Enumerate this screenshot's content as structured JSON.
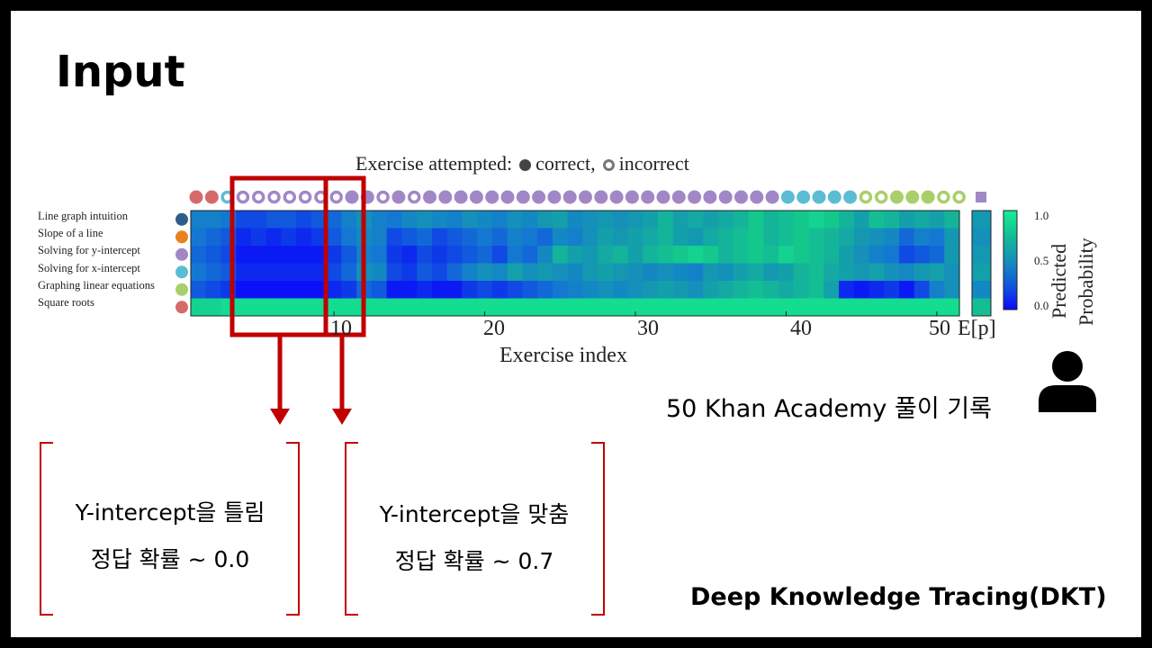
{
  "title": "Input",
  "figure": {
    "attempt_label": "Exercise attempted:",
    "correct_label": "correct,",
    "incorrect_label": "incorrect",
    "skills": [
      {
        "name": "Line graph intuition",
        "color": "#2f5d8a"
      },
      {
        "name": "Slope of a line",
        "color": "#e8821e"
      },
      {
        "name": "Solving for y-intercept",
        "color": "#a287c6"
      },
      {
        "name": "Solving for x-intercept",
        "color": "#5bbdd4"
      },
      {
        "name": "Graphing linear equations",
        "color": "#a9cf6a"
      },
      {
        "name": "Square roots",
        "color": "#d66a6a"
      }
    ],
    "x_ticks": [
      "10",
      "20",
      "30",
      "40",
      "50"
    ],
    "x_label": "Exercise index",
    "ep_label": "E[p]",
    "colorbar_ticks": [
      "1.0",
      "0.5",
      "0.0"
    ],
    "colorbar_title": [
      "Predicted",
      "Probability"
    ]
  },
  "chart_data": {
    "type": "heatmap",
    "title": "Exercise attempted: correct, incorrect",
    "xlabel": "Exercise index",
    "ylabel": "",
    "x_ticks": [
      10,
      20,
      30,
      40,
      50
    ],
    "value_range": [
      0.0,
      1.0
    ],
    "colorbar_label": "Predicted Probability",
    "colorbar_ticks": [
      0.0,
      0.5,
      1.0
    ],
    "rows": [
      "Line graph intuition",
      "Slope of a line",
      "Solving for y-intercept",
      "Solving for x-intercept",
      "Graphing linear equations",
      "Square roots"
    ],
    "attempts": [
      {
        "skill": 5,
        "correct": true
      },
      {
        "skill": 5,
        "correct": true
      },
      {
        "skill": 3,
        "correct": false
      },
      {
        "skill": 2,
        "correct": false
      },
      {
        "skill": 2,
        "correct": false
      },
      {
        "skill": 2,
        "correct": false
      },
      {
        "skill": 2,
        "correct": false
      },
      {
        "skill": 2,
        "correct": false
      },
      {
        "skill": 2,
        "correct": false
      },
      {
        "skill": 2,
        "correct": false
      },
      {
        "skill": 2,
        "correct": true
      },
      {
        "skill": 2,
        "correct": true
      },
      {
        "skill": 2,
        "correct": false
      },
      {
        "skill": 2,
        "correct": true
      },
      {
        "skill": 2,
        "correct": false
      },
      {
        "skill": 2,
        "correct": true
      },
      {
        "skill": 2,
        "correct": true
      },
      {
        "skill": 2,
        "correct": true
      },
      {
        "skill": 2,
        "correct": true
      },
      {
        "skill": 2,
        "correct": true
      },
      {
        "skill": 2,
        "correct": true
      },
      {
        "skill": 2,
        "correct": true
      },
      {
        "skill": 2,
        "correct": true
      },
      {
        "skill": 2,
        "correct": true
      },
      {
        "skill": 2,
        "correct": true
      },
      {
        "skill": 2,
        "correct": true
      },
      {
        "skill": 2,
        "correct": true
      },
      {
        "skill": 2,
        "correct": true
      },
      {
        "skill": 2,
        "correct": true
      },
      {
        "skill": 2,
        "correct": true
      },
      {
        "skill": 2,
        "correct": true
      },
      {
        "skill": 2,
        "correct": true
      },
      {
        "skill": 2,
        "correct": true
      },
      {
        "skill": 2,
        "correct": true
      },
      {
        "skill": 2,
        "correct": true
      },
      {
        "skill": 2,
        "correct": true
      },
      {
        "skill": 2,
        "correct": true
      },
      {
        "skill": 2,
        "correct": true
      },
      {
        "skill": 3,
        "correct": true
      },
      {
        "skill": 3,
        "correct": true
      },
      {
        "skill": 3,
        "correct": true
      },
      {
        "skill": 3,
        "correct": true
      },
      {
        "skill": 3,
        "correct": true
      },
      {
        "skill": 4,
        "correct": false
      },
      {
        "skill": 4,
        "correct": false
      },
      {
        "skill": 4,
        "correct": true
      },
      {
        "skill": 4,
        "correct": true
      },
      {
        "skill": 4,
        "correct": true
      },
      {
        "skill": 4,
        "correct": false
      },
      {
        "skill": 4,
        "correct": false
      }
    ],
    "values": [
      [
        0.4,
        0.4,
        0.35,
        0.2,
        0.2,
        0.25,
        0.25,
        0.2,
        0.25,
        0.3,
        0.4,
        0.5,
        0.4,
        0.35,
        0.45,
        0.5,
        0.45,
        0.4,
        0.5,
        0.45,
        0.4,
        0.5,
        0.45,
        0.55,
        0.6,
        0.45,
        0.5,
        0.55,
        0.5,
        0.55,
        0.6,
        0.7,
        0.6,
        0.65,
        0.6,
        0.65,
        0.7,
        0.8,
        0.7,
        0.75,
        0.8,
        0.85,
        0.8,
        0.7,
        0.6,
        0.75,
        0.7,
        0.6,
        0.65,
        0.6,
        0.7
      ],
      [
        0.35,
        0.3,
        0.25,
        0.1,
        0.15,
        0.1,
        0.15,
        0.1,
        0.15,
        0.25,
        0.35,
        0.45,
        0.4,
        0.2,
        0.25,
        0.3,
        0.2,
        0.25,
        0.3,
        0.35,
        0.3,
        0.4,
        0.35,
        0.3,
        0.45,
        0.4,
        0.5,
        0.6,
        0.55,
        0.6,
        0.65,
        0.7,
        0.6,
        0.55,
        0.65,
        0.7,
        0.75,
        0.8,
        0.7,
        0.75,
        0.8,
        0.75,
        0.7,
        0.65,
        0.55,
        0.5,
        0.45,
        0.3,
        0.4,
        0.35,
        0.55
      ],
      [
        0.3,
        0.25,
        0.2,
        0.05,
        0.05,
        0.05,
        0.05,
        0.05,
        0.05,
        0.15,
        0.25,
        0.4,
        0.35,
        0.15,
        0.1,
        0.2,
        0.15,
        0.2,
        0.25,
        0.3,
        0.2,
        0.35,
        0.3,
        0.45,
        0.7,
        0.6,
        0.55,
        0.65,
        0.7,
        0.6,
        0.7,
        0.75,
        0.8,
        0.85,
        0.8,
        0.7,
        0.75,
        0.8,
        0.75,
        0.85,
        0.8,
        0.75,
        0.7,
        0.6,
        0.5,
        0.4,
        0.35,
        0.2,
        0.25,
        0.3,
        0.55
      ],
      [
        0.35,
        0.3,
        0.25,
        0.1,
        0.1,
        0.1,
        0.1,
        0.1,
        0.1,
        0.2,
        0.3,
        0.5,
        0.45,
        0.2,
        0.15,
        0.25,
        0.2,
        0.3,
        0.4,
        0.5,
        0.45,
        0.6,
        0.5,
        0.55,
        0.5,
        0.45,
        0.55,
        0.6,
        0.55,
        0.5,
        0.45,
        0.5,
        0.45,
        0.4,
        0.55,
        0.5,
        0.6,
        0.65,
        0.55,
        0.6,
        0.7,
        0.75,
        0.65,
        0.6,
        0.55,
        0.6,
        0.5,
        0.45,
        0.55,
        0.6,
        0.5
      ],
      [
        0.25,
        0.2,
        0.15,
        0.02,
        0.02,
        0.02,
        0.02,
        0.02,
        0.02,
        0.1,
        0.15,
        0.3,
        0.25,
        0.05,
        0.05,
        0.1,
        0.05,
        0.05,
        0.15,
        0.2,
        0.15,
        0.2,
        0.25,
        0.3,
        0.35,
        0.4,
        0.45,
        0.5,
        0.45,
        0.5,
        0.55,
        0.6,
        0.55,
        0.5,
        0.6,
        0.65,
        0.7,
        0.75,
        0.7,
        0.65,
        0.7,
        0.75,
        0.6,
        0.1,
        0.05,
        0.1,
        0.15,
        0.05,
        0.2,
        0.4,
        0.5
      ],
      [
        0.85,
        0.85,
        0.9,
        0.9,
        0.9,
        0.9,
        0.9,
        0.9,
        0.9,
        0.9,
        0.9,
        0.9,
        0.9,
        0.9,
        0.9,
        0.9,
        0.9,
        0.9,
        0.9,
        0.9,
        0.9,
        0.9,
        0.9,
        0.9,
        0.9,
        0.9,
        0.9,
        0.9,
        0.9,
        0.9,
        0.9,
        0.9,
        0.9,
        0.9,
        0.9,
        0.9,
        0.9,
        0.9,
        0.9,
        0.9,
        0.9,
        0.9,
        0.9,
        0.9,
        0.9,
        0.9,
        0.9,
        0.9,
        0.9,
        0.9,
        0.9
      ]
    ],
    "expected": [
      0.55,
      0.5,
      0.55,
      0.6,
      0.45,
      0.75
    ],
    "extra_attempt": {
      "symbol": "square",
      "color": "#a287c6"
    }
  },
  "annotations": {
    "accent_color": "#c00000",
    "box_left": {
      "line1": "Y-intercept을 틀림",
      "line2": "정답 확률 ~ 0.0"
    },
    "box_right": {
      "line1": "Y-intercept을 맞춤",
      "line2": "정답 확률 ~ 0.7"
    },
    "user_caption": "50 Khan Academy 풀이 기록",
    "user_icon": "person-icon",
    "footer": "Deep Knowledge Tracing(DKT)"
  }
}
